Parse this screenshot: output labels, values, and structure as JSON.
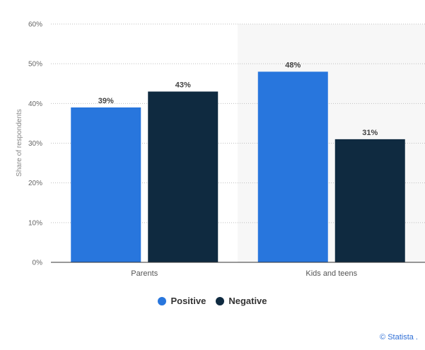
{
  "chart_data": {
    "type": "bar",
    "categories": [
      "Parents",
      "Kids and teens"
    ],
    "series": [
      {
        "name": "Positive",
        "values": [
          39,
          48
        ],
        "color": "#2876dd"
      },
      {
        "name": "Negative",
        "values": [
          43,
          31
        ],
        "color": "#0f2a40"
      }
    ],
    "ylabel": "Share of respondents",
    "ylim": [
      0,
      60
    ],
    "yticks": [
      0,
      10,
      20,
      30,
      40,
      50,
      60
    ],
    "tick_suffix": "%",
    "grid": true,
    "legend_position": "bottom-center"
  },
  "legend": {
    "positive_label": "Positive",
    "negative_label": "Negative",
    "positive_color": "#2876dd",
    "negative_color": "#0f2a40"
  },
  "credit": "© Statista ."
}
